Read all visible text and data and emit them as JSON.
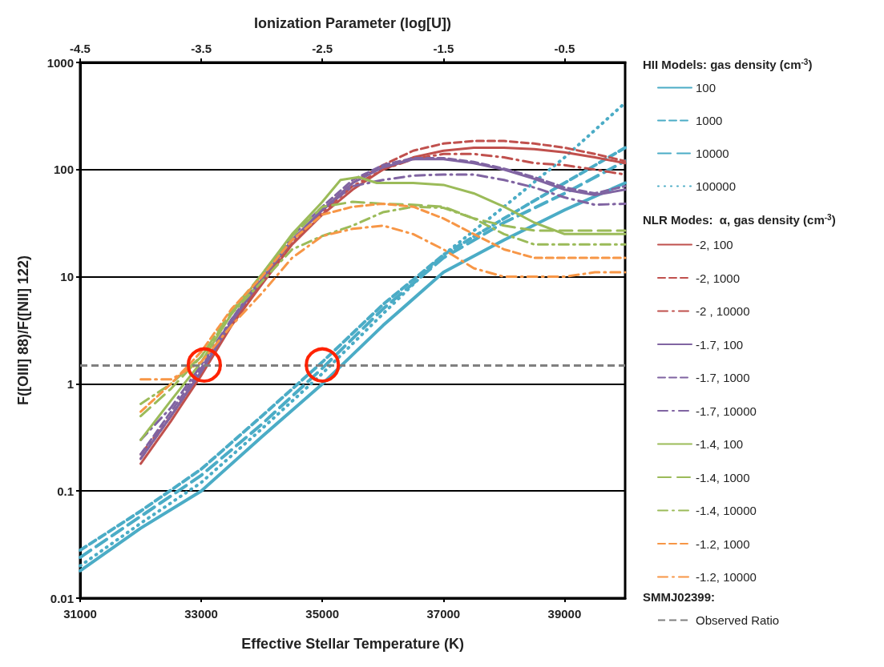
{
  "chart_data": {
    "type": "line",
    "x2label": "Ionization Parameter (log[U])",
    "xlabel": "Effective Stellar Temperature (K)",
    "ylabel": "F([OIII] 88)/F([NII] 122)",
    "legend_title": "HII Models: gas density (cm$^{-3}$)",
    "annotations": [
      "NLR Modes:  α, gas density (cm$^{-3}$)",
      "SMMJ02399:"
    ],
    "xlim": [
      31000,
      40000
    ],
    "xticks": [
      31000,
      33000,
      35000,
      37000,
      39000
    ],
    "x2lim": [
      -4.5,
      0
    ],
    "x2ticks": [
      -4.5,
      -3.5,
      -2.5,
      -1.5,
      -0.5
    ],
    "ylim": [
      0.01,
      1000
    ],
    "yticks": [
      0.01,
      0.1,
      1,
      10,
      100,
      1000
    ],
    "log": "y",
    "grid": "y",
    "legend": "right",
    "x": [
      32000,
      32500,
      33000,
      33500,
      34000,
      34500,
      35000,
      35500,
      36000,
      36500,
      37000,
      37500,
      38000,
      38500,
      39000,
      39500,
      40000
    ],
    "series": [
      {
        "name": "100",
        "color": "#4bacc6",
        "line_style": "solid",
        "x": [
          31000,
          32000,
          33000,
          34000,
          35000,
          36000,
          37000,
          38000,
          39000,
          40000
        ],
        "values": [
          0.018,
          0.045,
          0.1,
          0.32,
          1.0,
          3.5,
          11,
          22,
          42,
          75
        ]
      },
      {
        "name": "1000",
        "color": "#4bacc6",
        "line_style": "dashed",
        "x": [
          31000,
          32000,
          33000,
          34000,
          35000,
          36000,
          37000,
          38000,
          39000,
          40000
        ],
        "values": [
          0.028,
          0.065,
          0.16,
          0.5,
          1.6,
          5.5,
          16,
          35,
          75,
          160
        ]
      },
      {
        "name": "10000",
        "color": "#4bacc6",
        "line_style": "longdash",
        "x": [
          31000,
          32000,
          33000,
          34000,
          35000,
          36000,
          37000,
          38000,
          39000,
          40000
        ],
        "values": [
          0.024,
          0.058,
          0.14,
          0.42,
          1.4,
          5,
          15,
          32,
          60,
          120
        ]
      },
      {
        "name": "100000",
        "color": "#4bacc6",
        "line_style": "dotted",
        "x": [
          31000,
          32000,
          33000,
          34000,
          35000,
          36000,
          37000,
          38000,
          39000,
          40000
        ],
        "values": [
          0.02,
          0.05,
          0.12,
          0.38,
          1.25,
          4.5,
          16,
          45,
          130,
          420
        ]
      },
      {
        "name": "-2, 100",
        "color": "#c0504d",
        "line_style": "solid",
        "values": [
          0.18,
          0.45,
          1.2,
          3.5,
          8.5,
          20,
          38,
          65,
          100,
          130,
          150,
          160,
          160,
          155,
          145,
          130,
          115
        ]
      },
      {
        "name": "-2, 1000",
        "color": "#c0504d",
        "line_style": "dashed",
        "values": [
          0.2,
          0.5,
          1.3,
          3.8,
          9,
          22,
          42,
          75,
          110,
          150,
          175,
          185,
          185,
          175,
          160,
          140,
          120
        ]
      },
      {
        "name": "-2 , 10000",
        "color": "#c0504d",
        "line_style": "dashdot",
        "values": [
          0.22,
          0.5,
          1.3,
          3.7,
          9,
          21,
          40,
          70,
          100,
          125,
          140,
          140,
          130,
          115,
          110,
          100,
          90
        ]
      },
      {
        "name": "-1.7, 100",
        "color": "#8064a2",
        "line_style": "solid",
        "values": [
          0.2,
          0.5,
          1.3,
          3.8,
          9.5,
          22,
          42,
          75,
          105,
          125,
          125,
          115,
          100,
          82,
          65,
          58,
          65
        ]
      },
      {
        "name": "-1.7, 1000",
        "color": "#8064a2",
        "line_style": "dashed",
        "values": [
          0.22,
          0.55,
          1.4,
          4,
          10,
          24,
          45,
          80,
          110,
          128,
          128,
          118,
          102,
          85,
          68,
          60,
          70
        ]
      },
      {
        "name": "-1.7, 10000",
        "color": "#8064a2",
        "line_style": "dashdot",
        "values": [
          0.3,
          0.6,
          1.5,
          4,
          9.5,
          22,
          42,
          70,
          80,
          88,
          90,
          90,
          80,
          68,
          55,
          47,
          48
        ]
      },
      {
        "name": "-1.4, 100",
        "color": "#9bbb59",
        "line_style": "solid",
        "x": [
          32000,
          32500,
          33000,
          33500,
          34000,
          34500,
          35000,
          35300,
          35600,
          35900,
          36500,
          37000,
          37500,
          38000,
          38500,
          39000,
          39500,
          40000
        ],
        "values": [
          0.3,
          0.7,
          1.6,
          4.5,
          10.5,
          25,
          50,
          80,
          85,
          75,
          75,
          72,
          60,
          45,
          32,
          25,
          25,
          25
        ]
      },
      {
        "name": "-1.4, 1000",
        "color": "#9bbb59",
        "line_style": "longdash",
        "values": [
          0.5,
          0.9,
          1.8,
          4.8,
          10.5,
          24,
          45,
          50,
          48,
          47,
          45,
          35,
          30,
          27,
          27,
          27,
          27
        ]
      },
      {
        "name": "-1.4, 10000",
        "color": "#9bbb59",
        "line_style": "dashdot",
        "values": [
          0.65,
          1.0,
          1.8,
          4.5,
          9,
          18,
          24,
          30,
          40,
          45,
          44,
          35,
          25,
          20,
          20,
          20,
          20
        ]
      },
      {
        "name": "-1.2, 1000",
        "color": "#f79646",
        "line_style": "dashed",
        "values": [
          0.55,
          1.0,
          2,
          5,
          10,
          22,
          38,
          45,
          48,
          45,
          35,
          25,
          18,
          15,
          15,
          15,
          15
        ]
      },
      {
        "name": "-1.2, 10000",
        "color": "#f79646",
        "line_style": "dashdot",
        "values": [
          1.1,
          1.1,
          1.6,
          3.5,
          7,
          15,
          24,
          28,
          30,
          25,
          18,
          12,
          10,
          10,
          10,
          11,
          11
        ]
      },
      {
        "type": "scatter",
        "marker": "circle",
        "color": "#ff2200",
        "x": [
          33050,
          35000
        ],
        "values": [
          1.5,
          1.5
        ]
      }
    ],
    "ref_lines": [
      {
        "axis": "y",
        "value": 1.5,
        "label": "Observed Ratio",
        "color": "#808080",
        "line_style": "dashed"
      }
    ]
  }
}
